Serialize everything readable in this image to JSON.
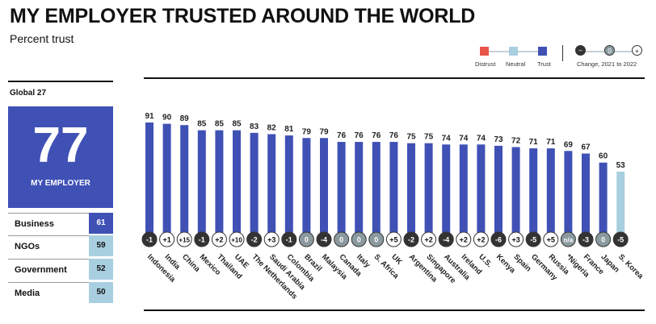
{
  "title": "MY EMPLOYER TRUSTED AROUND THE WORLD",
  "subtitle": "Percent trust",
  "legend": {
    "distrust": "Distrust",
    "neutral": "Neutral",
    "trust": "Trust",
    "change_label": "Change, 2021 to 2022",
    "change_symbols": [
      "–",
      "0",
      "+"
    ]
  },
  "colors": {
    "trust": "#3f51b5",
    "neutral": "#a8cfe0",
    "distrust": "#e8564a",
    "change_negative": "#333333",
    "change_zero": "#8a9a9e",
    "change_positive": "#ffffff"
  },
  "global": {
    "label": "Global 27",
    "value": "77",
    "caption": "MY EMPLOYER",
    "rows": [
      {
        "label": "Business",
        "value": "61",
        "level": "trust"
      },
      {
        "label": "NGOs",
        "value": "59",
        "level": "neutral"
      },
      {
        "label": "Government",
        "value": "52",
        "level": "neutral"
      },
      {
        "label": "Media",
        "value": "50",
        "level": "neutral"
      }
    ]
  },
  "chart_data": {
    "type": "bar",
    "title": "MY EMPLOYER TRUSTED AROUND THE WORLD",
    "ylabel": "Percent trust",
    "ylim": [
      0,
      100
    ],
    "grid": false,
    "categories": [
      "Indonesia",
      "India",
      "China",
      "Mexico",
      "Thailand",
      "UAE",
      "The Netherlands",
      "Saudi Arabia",
      "Colombia",
      "Brazil",
      "Malaysia",
      "Canada",
      "Italy",
      "S. Africa",
      "UK",
      "Argentina",
      "Singapore",
      "Australia",
      "Ireland",
      "U.S.",
      "Kenya",
      "Spain",
      "Germany",
      "Russia",
      "*Nigeria",
      "France",
      "Japan",
      "S. Korea"
    ],
    "values": [
      91,
      90,
      89,
      85,
      85,
      85,
      83,
      82,
      81,
      79,
      79,
      76,
      76,
      76,
      76,
      75,
      75,
      74,
      74,
      74,
      73,
      72,
      71,
      71,
      69,
      67,
      60,
      53
    ],
    "levels": [
      "trust",
      "trust",
      "trust",
      "trust",
      "trust",
      "trust",
      "trust",
      "trust",
      "trust",
      "trust",
      "trust",
      "trust",
      "trust",
      "trust",
      "trust",
      "trust",
      "trust",
      "trust",
      "trust",
      "trust",
      "trust",
      "trust",
      "trust",
      "trust",
      "trust",
      "trust",
      "trust",
      "neutral"
    ],
    "changes": [
      "-1",
      "+1",
      "+15",
      "-1",
      "+2",
      "+10",
      "-2",
      "+3",
      "-1",
      "0",
      "-4",
      "0",
      "0",
      "0",
      "+5",
      "-2",
      "+2",
      "-4",
      "+2",
      "+2",
      "-6",
      "+3",
      "-5",
      "+5",
      "n/a",
      "-3",
      "0",
      "-5"
    ]
  }
}
